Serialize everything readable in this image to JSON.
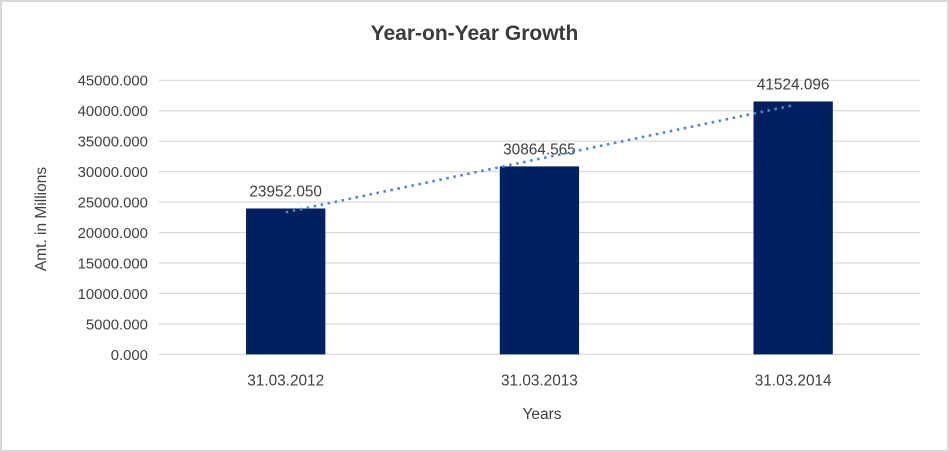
{
  "chart_data": {
    "type": "bar",
    "title": "Year-on-Year Growth",
    "xlabel": "Years",
    "ylabel": "Amt. in Millions",
    "categories": [
      "31.03.2012",
      "31.03.2013",
      "31.03.2014"
    ],
    "values": [
      23952.05,
      30864.565,
      41524.096
    ],
    "value_labels": [
      "23952.050",
      "30864.565",
      "41524.096"
    ],
    "ylim": [
      0,
      45000
    ],
    "ytick_step": 5000,
    "ytick_decimals": 3,
    "grid": true,
    "legend_position": "none",
    "trendline": {
      "type": "linear",
      "style": "dotted"
    },
    "colors": {
      "bar": "#002060",
      "trendline": "#4f87ce",
      "gridline": "#d9d9d9",
      "tick_text": "#404040",
      "label_text": "#404040",
      "title_text": "#3b3b3b",
      "background": "#ffffff",
      "border": "#d8d8d8"
    }
  }
}
